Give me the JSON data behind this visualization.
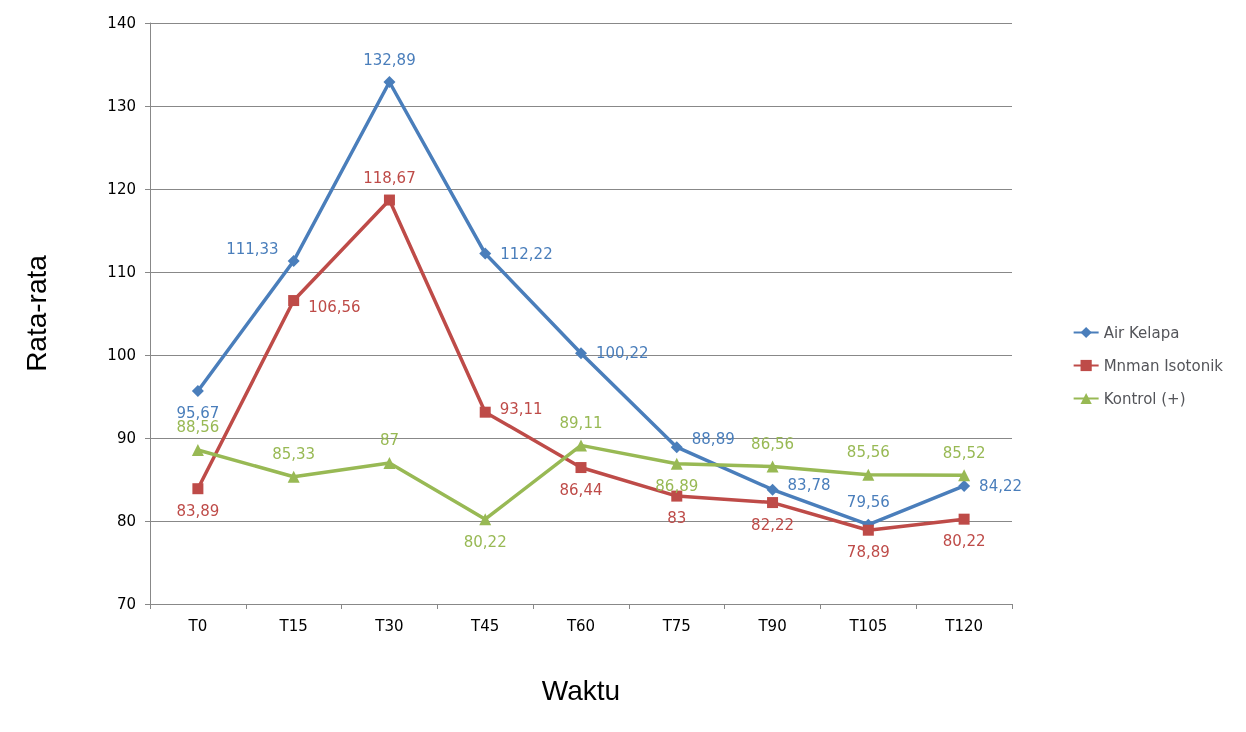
{
  "chart_data": {
    "type": "line",
    "xlabel": "Waktu",
    "ylabel": "Rata-rata",
    "categories": [
      "T0",
      "T15",
      "T30",
      "T45",
      "T60",
      "T75",
      "T90",
      "T105",
      "T120"
    ],
    "ylim": [
      70,
      140
    ],
    "yticks": [
      70,
      80,
      90,
      100,
      110,
      120,
      130,
      140
    ],
    "grid": "y",
    "legend": "right",
    "series": [
      {
        "name": "Air Kelapa",
        "color": "#4a7ebb",
        "marker": "diamond",
        "values": [
          95.67,
          111.33,
          132.89,
          112.22,
          100.22,
          88.89,
          83.78,
          79.56,
          84.22
        ],
        "value_labels": [
          "95,67",
          "111,33",
          "132,89",
          "112,22",
          "100,22",
          "88,89",
          "83,78",
          "79,56",
          "84,22"
        ]
      },
      {
        "name": "Mnman Isotonik",
        "color": "#be4b48",
        "marker": "square",
        "values": [
          83.89,
          106.56,
          118.67,
          93.11,
          86.44,
          83,
          82.22,
          78.89,
          80.22
        ],
        "value_labels": [
          "83,89",
          "106,56",
          "118,67",
          "93,11",
          "86,44",
          "83",
          "82,22",
          "78,89",
          "80,22"
        ]
      },
      {
        "name": "Kontrol (+)",
        "color": "#98b954",
        "marker": "triangle",
        "values": [
          88.56,
          85.33,
          87,
          80.22,
          89.11,
          86.89,
          86.56,
          85.56,
          85.52
        ],
        "value_labels": [
          "88,56",
          "85,33",
          "87",
          "80,22",
          "89,11",
          "86,89",
          "86,56",
          "85,56",
          "85,52"
        ]
      }
    ]
  }
}
